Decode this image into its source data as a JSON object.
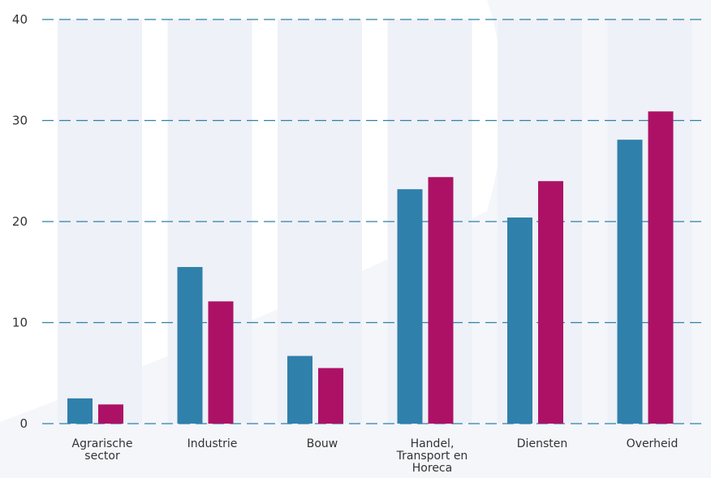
{
  "colors": {
    "series_a": "#2f80ab",
    "series_b": "#ad1166",
    "band": "#eef1f7",
    "grid": "#2f80ab",
    "text": "#333333"
  },
  "chart_data": {
    "type": "bar",
    "title": "",
    "xlabel": "",
    "ylabel": "",
    "ylim": [
      0,
      40
    ],
    "yticks": [
      0,
      10,
      20,
      30,
      40
    ],
    "grid": true,
    "categories": [
      [
        "Agrarische",
        "sector"
      ],
      [
        "Industrie"
      ],
      [
        "Bouw"
      ],
      [
        "Handel,",
        "Transport en",
        "Horeca"
      ],
      [
        "Diensten"
      ],
      [
        "Overheid"
      ]
    ],
    "series": [
      {
        "color": "#2f80ab",
        "values": [
          2.5,
          15.5,
          6.7,
          23.2,
          20.4,
          28.1
        ]
      },
      {
        "color": "#ad1166",
        "values": [
          1.9,
          12.1,
          5.5,
          24.4,
          24.0,
          30.9
        ]
      }
    ]
  }
}
